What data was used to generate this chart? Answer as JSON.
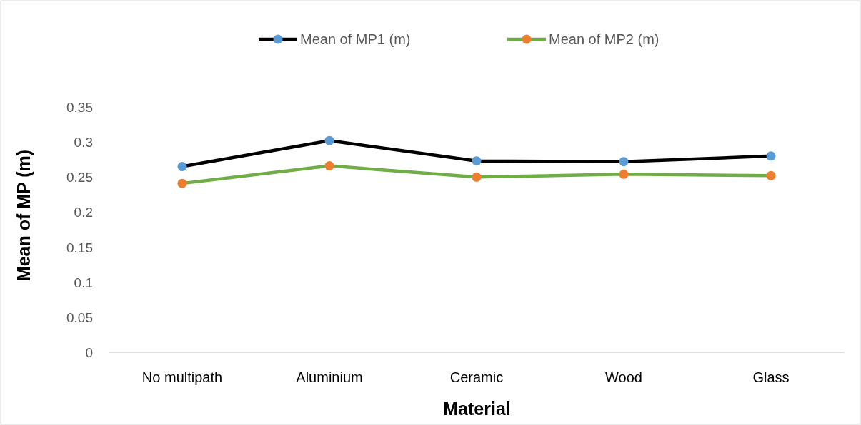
{
  "chart_data": {
    "type": "line",
    "xlabel": "Material",
    "ylabel": "Mean of MP (m)",
    "categories": [
      "No multipath",
      "Aluminium",
      "Ceramic",
      "Wood",
      "Glass"
    ],
    "series": [
      {
        "name": "Mean of MP1 (m)",
        "color": "#000000",
        "colors": [
          "#5b9bd5",
          "#5b9bd5",
          "#5b9bd5",
          "#5b9bd5",
          "#5b9bd5"
        ],
        "values": [
          0.265,
          0.302,
          0.273,
          0.272,
          0.28
        ]
      },
      {
        "name": "Mean of MP2 (m)",
        "color": "#70ad47",
        "colors": [
          "#ed7d31",
          "#ed7d31",
          "#ed7d31",
          "#ed7d31",
          "#ed7d31"
        ],
        "values": [
          0.241,
          0.266,
          0.25,
          0.254,
          0.252
        ]
      }
    ],
    "ylim": [
      0,
      0.35
    ],
    "yticks": [
      0,
      0.05,
      0.1,
      0.15,
      0.2,
      0.25,
      0.3,
      0.35
    ],
    "grid": false,
    "legend": "top",
    "marker": "circle",
    "line_style": "solid"
  }
}
